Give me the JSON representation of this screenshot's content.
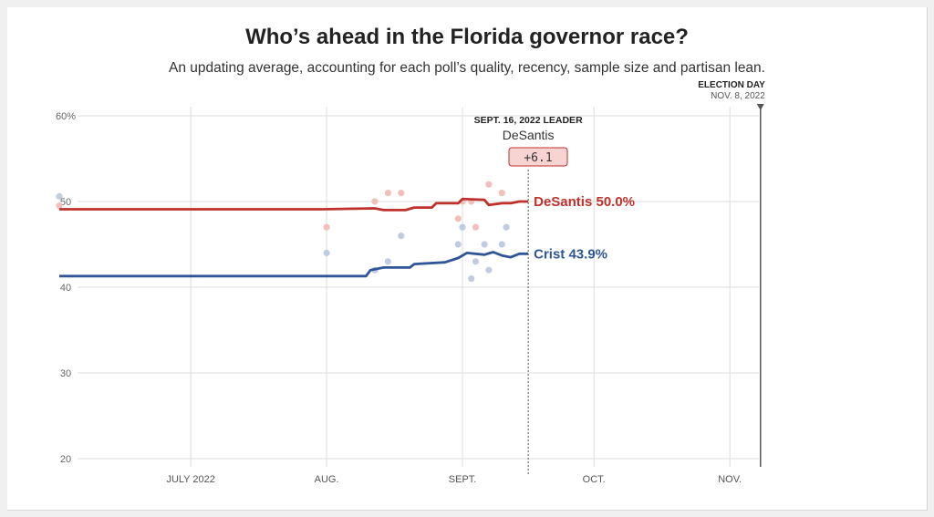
{
  "chart_data": {
    "type": "line",
    "title": "Who’s ahead in the Florida governor race?",
    "subtitle": "An updating average, accounting for each poll’s quality, recency, sample size and partisan lean.",
    "xlabel": "",
    "ylabel": "",
    "xlim": [
      "2022-06-01",
      "2022-11-08"
    ],
    "ylim": [
      20,
      60
    ],
    "y_ticks": [
      20,
      30,
      40,
      50,
      60
    ],
    "y_tick_labels": [
      "20",
      "30",
      "40",
      "50",
      "60%"
    ],
    "x_ticks": [
      "2022-07-01",
      "2022-08-01",
      "2022-09-01",
      "2022-10-01",
      "2022-11-01"
    ],
    "x_tick_labels": [
      "JULY 2022",
      "AUG.",
      "SEPT.",
      "OCT.",
      "NOV."
    ],
    "grid": true,
    "election_day": {
      "label": "ELECTION DAY",
      "date_label": "NOV. 8, 2022",
      "date": "2022-11-08"
    },
    "current": {
      "date": "2022-09-16",
      "header": "SEPT. 16, 2022 LEADER",
      "leader": "DeSantis",
      "margin": "+6.1"
    },
    "series": [
      {
        "name": "DeSantis",
        "end_label": "DeSantis 50.0%",
        "color": "#c0312b",
        "dot_color": "#f2b8b5",
        "points": [
          [
            "2022-06-01",
            49.1
          ],
          [
            "2022-07-31",
            49.1
          ],
          [
            "2022-08-12",
            49.2
          ],
          [
            "2022-08-14",
            49.0
          ],
          [
            "2022-08-19",
            49.0
          ],
          [
            "2022-08-21",
            49.3
          ],
          [
            "2022-08-25",
            49.3
          ],
          [
            "2022-08-26",
            49.8
          ],
          [
            "2022-08-31",
            49.8
          ],
          [
            "2022-09-01",
            50.3
          ],
          [
            "2022-09-06",
            50.2
          ],
          [
            "2022-09-07",
            49.6
          ],
          [
            "2022-09-10",
            49.8
          ],
          [
            "2022-09-12",
            49.8
          ],
          [
            "2022-09-14",
            50.0
          ],
          [
            "2022-09-16",
            50.0
          ]
        ],
        "polls": [
          [
            "2022-06-01",
            49.5
          ],
          [
            "2022-08-01",
            47.0
          ],
          [
            "2022-08-12",
            50.0
          ],
          [
            "2022-08-15",
            51.0
          ],
          [
            "2022-08-18",
            51.0
          ],
          [
            "2022-08-31",
            48.0
          ],
          [
            "2022-09-01",
            50.0
          ],
          [
            "2022-09-03",
            50.0
          ],
          [
            "2022-09-04",
            47.0
          ],
          [
            "2022-09-07",
            52.0
          ],
          [
            "2022-09-10",
            51.0
          ]
        ]
      },
      {
        "name": "Crist",
        "end_label": "Crist 43.9%",
        "color": "#2f5597",
        "dot_color": "#b8c7df",
        "points": [
          [
            "2022-06-01",
            41.3
          ],
          [
            "2022-08-01",
            41.3
          ],
          [
            "2022-08-10",
            41.3
          ],
          [
            "2022-08-11",
            42.0
          ],
          [
            "2022-08-14",
            42.3
          ],
          [
            "2022-08-20",
            42.3
          ],
          [
            "2022-08-21",
            42.7
          ],
          [
            "2022-08-28",
            42.9
          ],
          [
            "2022-08-31",
            43.4
          ],
          [
            "2022-09-02",
            44.0
          ],
          [
            "2022-09-06",
            43.8
          ],
          [
            "2022-09-08",
            44.1
          ],
          [
            "2022-09-10",
            43.7
          ],
          [
            "2022-09-12",
            43.5
          ],
          [
            "2022-09-14",
            43.9
          ],
          [
            "2022-09-16",
            43.9
          ]
        ],
        "polls": [
          [
            "2022-06-01",
            50.6
          ],
          [
            "2022-08-01",
            44.0
          ],
          [
            "2022-08-12",
            42.0
          ],
          [
            "2022-08-15",
            43.0
          ],
          [
            "2022-08-18",
            46.0
          ],
          [
            "2022-08-31",
            45.0
          ],
          [
            "2022-09-01",
            47.0
          ],
          [
            "2022-09-03",
            41.0
          ],
          [
            "2022-09-04",
            43.0
          ],
          [
            "2022-09-06",
            45.0
          ],
          [
            "2022-09-07",
            42.0
          ],
          [
            "2022-09-10",
            45.0
          ],
          [
            "2022-09-11",
            47.0
          ]
        ]
      }
    ]
  }
}
